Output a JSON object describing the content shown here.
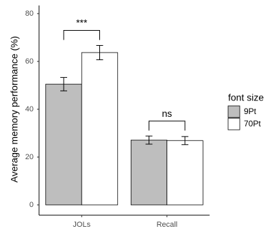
{
  "chart_data": {
    "type": "bar",
    "y_label": "Average memory performance (%)",
    "categories": [
      "JOLs",
      "Recall"
    ],
    "series": [
      {
        "name": "9Pt",
        "color": "#bebebe",
        "values": [
          50.5,
          27.1
        ],
        "errors": [
          2.8,
          1.7
        ]
      },
      {
        "name": "70Pt",
        "color": "#ffffff",
        "values": [
          63.7,
          26.9
        ],
        "errors": [
          3.0,
          1.7
        ]
      }
    ],
    "annotations": [
      "***",
      "ns"
    ],
    "legend_title": "font size",
    "legend": "right",
    "ylim": [
      -4.3,
      83.4
    ],
    "yticks": [
      0,
      20,
      40,
      60,
      80
    ]
  }
}
